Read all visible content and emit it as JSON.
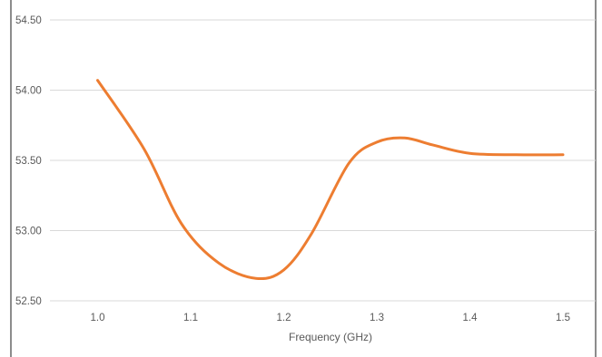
{
  "chart_data": {
    "type": "line",
    "title": "",
    "xlabel": "Frequency (GHz)",
    "ylabel": "",
    "x_ticks": [
      "1.0",
      "1.1",
      "1.2",
      "1.3",
      "1.4",
      "1.5"
    ],
    "y_ticks": [
      "52.50",
      "53.00",
      "53.50",
      "54.00",
      "54.50"
    ],
    "xlim": [
      0.95,
      1.55
    ],
    "ylim": [
      52.5,
      54.5
    ],
    "grid": true,
    "legend": "none",
    "series": [
      {
        "color": "#ED7D31",
        "x": [
          1.0,
          1.05,
          1.09,
          1.13,
          1.17,
          1.2,
          1.23,
          1.27,
          1.3,
          1.33,
          1.36,
          1.4,
          1.45,
          1.5
        ],
        "y": [
          54.07,
          53.58,
          53.05,
          52.77,
          52.66,
          52.72,
          52.98,
          53.48,
          53.63,
          53.66,
          53.61,
          53.55,
          53.54,
          53.54
        ]
      }
    ]
  }
}
